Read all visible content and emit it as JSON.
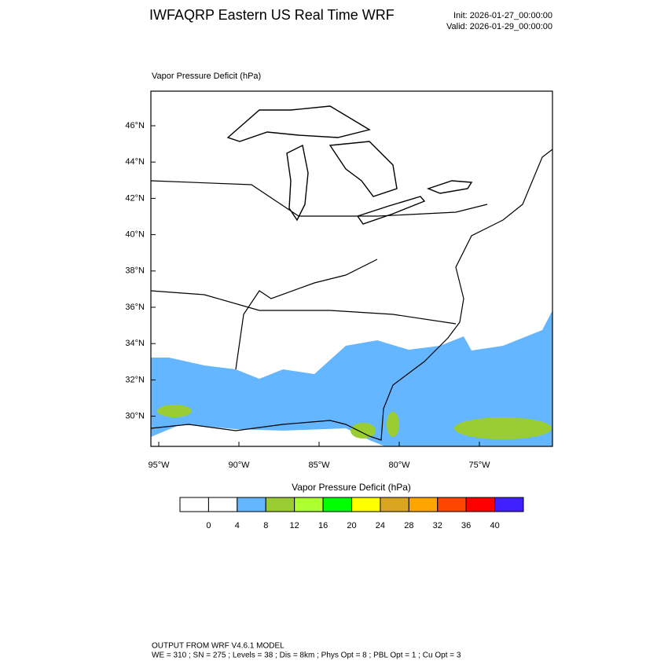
{
  "header": {
    "title": "IWFAQRP Eastern US Real Time WRF",
    "init": "Init: 2026-01-27_00:00:00",
    "valid": "Valid: 2026-01-29_00:00:00"
  },
  "map": {
    "label": "Vapor Pressure Deficit   (hPa)",
    "lat_labels": [
      "46°N",
      "44°N",
      "42°N",
      "40°N",
      "38°N",
      "36°N",
      "34°N",
      "32°N",
      "30°N"
    ],
    "lon_labels": [
      "95°W",
      "90°W",
      "85°W",
      "80°W",
      "75°W"
    ]
  },
  "colorbar": {
    "title": "Vapor Pressure Deficit  (hPa)",
    "labels": [
      0,
      4,
      8,
      12,
      16,
      20,
      24,
      28,
      32,
      36,
      40
    ],
    "colors": [
      "#ffffff",
      "#ffffff",
      "#63b6ff",
      "#9acd32",
      "#adff2f",
      "#00ff00",
      "#ffff00",
      "#daa520",
      "#ffa500",
      "#ff4500",
      "#ff0000",
      "#4020ff"
    ]
  },
  "footer": {
    "line1": "OUTPUT FROM WRF V4.6.1 MODEL",
    "line2": "WE = 310 ; SN = 275 ; Levels = 38 ; Dis = 8km ; Phys Opt = 8 ; PBL Opt = 1 ; Cu Opt = 3"
  }
}
